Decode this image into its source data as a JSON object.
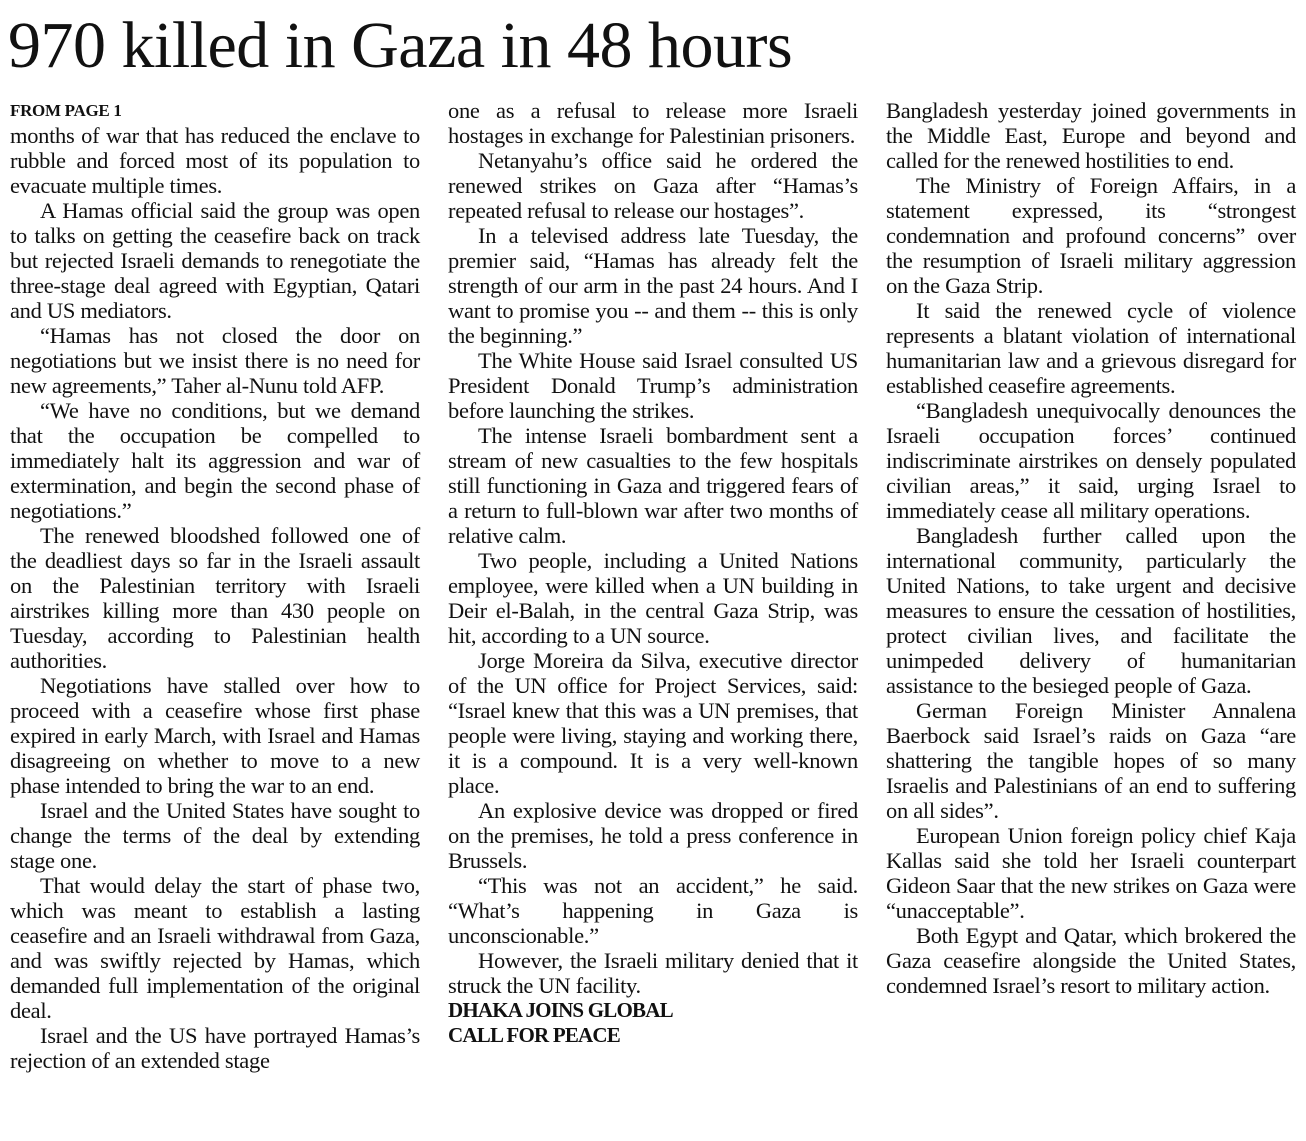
{
  "headline": "970 killed in Gaza in 48 hours",
  "kicker": "FROM PAGE 1",
  "col1": [
    "months of war that has reduced the enclave to rubble and forced most of its population to evacuate multiple times.",
    "A Hamas official said the group was open to talks on getting the ceasefire back on track but rejected Israeli demands to renegotiate the three-stage deal agreed with Egyptian, Qatari and US mediators.",
    "“Hamas has not closed the door on negotiations but we insist there is no need for new agreements,” Taher al-Nunu told AFP.",
    "“We have no conditions, but we demand that the occupation be compelled to immediately halt its aggression and war of extermination, and begin the second phase of negotiations.”",
    "The renewed bloodshed followed one of the deadliest days so far in the Israeli assault on the Palestinian territory with Israeli airstrikes killing more than 430 people on Tuesday, according to Palestinian health authorities.",
    "Negotiations have stalled over how to proceed with a ceasefire whose first phase expired in early March, with Israel and Hamas disagreeing on whether to move to a new phase intended to bring the war to an end.",
    "Israel and the United States have sought to change the terms of the deal by extending stage one.",
    "That would delay the start of phase two, which was meant to establish a lasting ceasefire and an Israeli withdrawal from Gaza, and was swiftly rejected by Hamas, which demanded full implementation of the original deal.",
    "Israel and the US have portrayed Hamas’s rejection of an extended stage"
  ],
  "col2": [
    "one as a refusal to release more Israeli hostages in exchange for Palestinian prisoners.",
    "Netanyahu’s office said he ordered the renewed strikes on Gaza after “Hamas’s repeated refusal to release our hostages”.",
    "In a televised address late Tuesday, the premier said, “Hamas has already felt the strength of our arm in the past 24 hours. And I want to promise you -- and them -- this is only the beginning.”",
    "The White House said Israel consulted US President Donald Trump’s administration before launching the strikes.",
    "The intense Israeli bombardment sent a stream of new casualties to the few hospitals still functioning in Gaza and triggered fears of a return to full-blown war after two months of relative calm.",
    "Two people, including a United Nations employee, were killed when a UN building in Deir el-Balah, in the central Gaza Strip, was hit, according to a UN source.",
    "Jorge Moreira da Silva, executive director of the UN office for Project Services, said: “Israel knew that this was a UN premises, that people were living, staying and working there, it is a compound. It is a very well-known place.",
    "An explosive device was dropped or fired on the premises, he told a press conference in Brussels.",
    "“This was not an accident,” he said. “What’s happening in Gaza is unconscionable.”",
    "However, the Israeli military denied that it struck the UN facility."
  ],
  "subhead": [
    "DHAKA JOINS GLOBAL",
    "CALL FOR PEACE"
  ],
  "col3": [
    "Bangladesh yesterday joined governments in the Middle East, Europe and beyond and called for the renewed hostilities to end.",
    "The Ministry of Foreign Affairs, in a statement expressed, its “strongest condemnation and profound concerns” over the resumption of Israeli military aggression on the Gaza Strip.",
    "It said the renewed cycle of violence represents a blatant violation of international humanitarian law and a grievous disregard for established ceasefire agreements.",
    "“Bangladesh unequivocally denounces the Israeli occupation forces’ continued indiscriminate airstrikes on densely populated civilian areas,” it said, urging Israel to immediately cease all military operations.",
    "Bangladesh further called upon the international community, particularly the United Nations, to take urgent and decisive measures to ensure the cessation of hostilities, protect civilian lives, and facilitate the unimpeded delivery of humanitarian assistance to the besieged people of Gaza.",
    "German Foreign Minister Annalena Baerbock said Israel’s raids on Gaza “are shattering the tangible hopes of so many Israelis and Palestinians of an end to suffering on all sides”.",
    "European Union foreign policy chief Kaja Kallas said she told her Israeli counterpart Gideon Saar that the new strikes on Gaza were “unacceptable”.",
    "Both Egypt and Qatar, which brokered the Gaza ceasefire alongside the United States, condemned Israel’s resort to military action."
  ]
}
